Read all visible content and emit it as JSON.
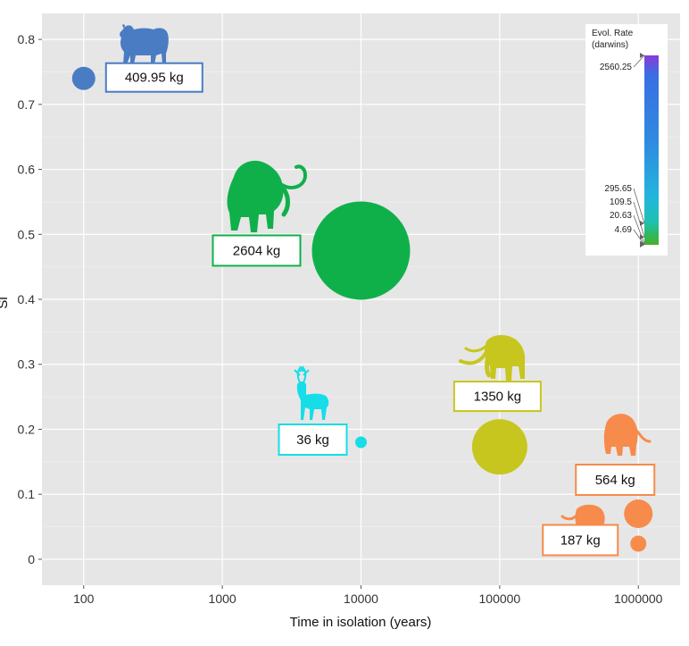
{
  "chart_data": {
    "type": "scatter",
    "title": "",
    "xlabel": "Time in isolation (years)",
    "ylabel": "Si",
    "x_scale": "log",
    "xlim": [
      50,
      2000000
    ],
    "ylim": [
      -0.04,
      0.84
    ],
    "x_ticks": [
      100,
      1000,
      10000,
      100000,
      1000000
    ],
    "x_tick_labels": [
      "100",
      "1000",
      "10000",
      "100000",
      "1000000"
    ],
    "y_ticks": [
      0,
      0.1,
      0.2,
      0.3,
      0.4,
      0.5,
      0.6,
      0.7,
      0.8
    ],
    "y_tick_labels": [
      "0",
      "0.1",
      "0.2",
      "0.3",
      "0.4",
      "0.5",
      "0.6",
      "0.7",
      "0.8"
    ],
    "grid": true,
    "points": [
      {
        "x": 100,
        "y": 0.74,
        "rate": 2560.25,
        "color": "#4a7cc4",
        "animal": "bison-icon",
        "mass_label": "409.95 kg"
      },
      {
        "x": 10000,
        "y": 0.475,
        "rate": 20.63,
        "color": "#0fb04a",
        "animal": "mammoth-icon",
        "mass_label": "2604 kg"
      },
      {
        "x": 10000,
        "y": 0.18,
        "rate": 295.65,
        "color": "#16dde8",
        "animal": "deer-icon",
        "mass_label": "36 kg"
      },
      {
        "x": 100000,
        "y": 0.173,
        "rate": 4.69,
        "color": "#c6c61e",
        "animal": "mammoth-icon",
        "mass_label": "1350 kg"
      },
      {
        "x": 1000000,
        "y": 0.07,
        "rate": 109.5,
        "color": "#f68b4c",
        "animal": "mammoth-icon",
        "mass_label": "564 kg"
      },
      {
        "x": 1000000,
        "y": 0.024,
        "rate": 109.5,
        "color": "#f68b4c",
        "animal": "mammoth-icon",
        "mass_label": "187 kg"
      }
    ],
    "legend": {
      "title_line1": "Evol. Rate",
      "title_line2": "(darwins)",
      "placement": "top-right",
      "marked_values": [
        "2560.25",
        "295.65",
        "109.5",
        "20.63",
        "4.69"
      ]
    }
  }
}
